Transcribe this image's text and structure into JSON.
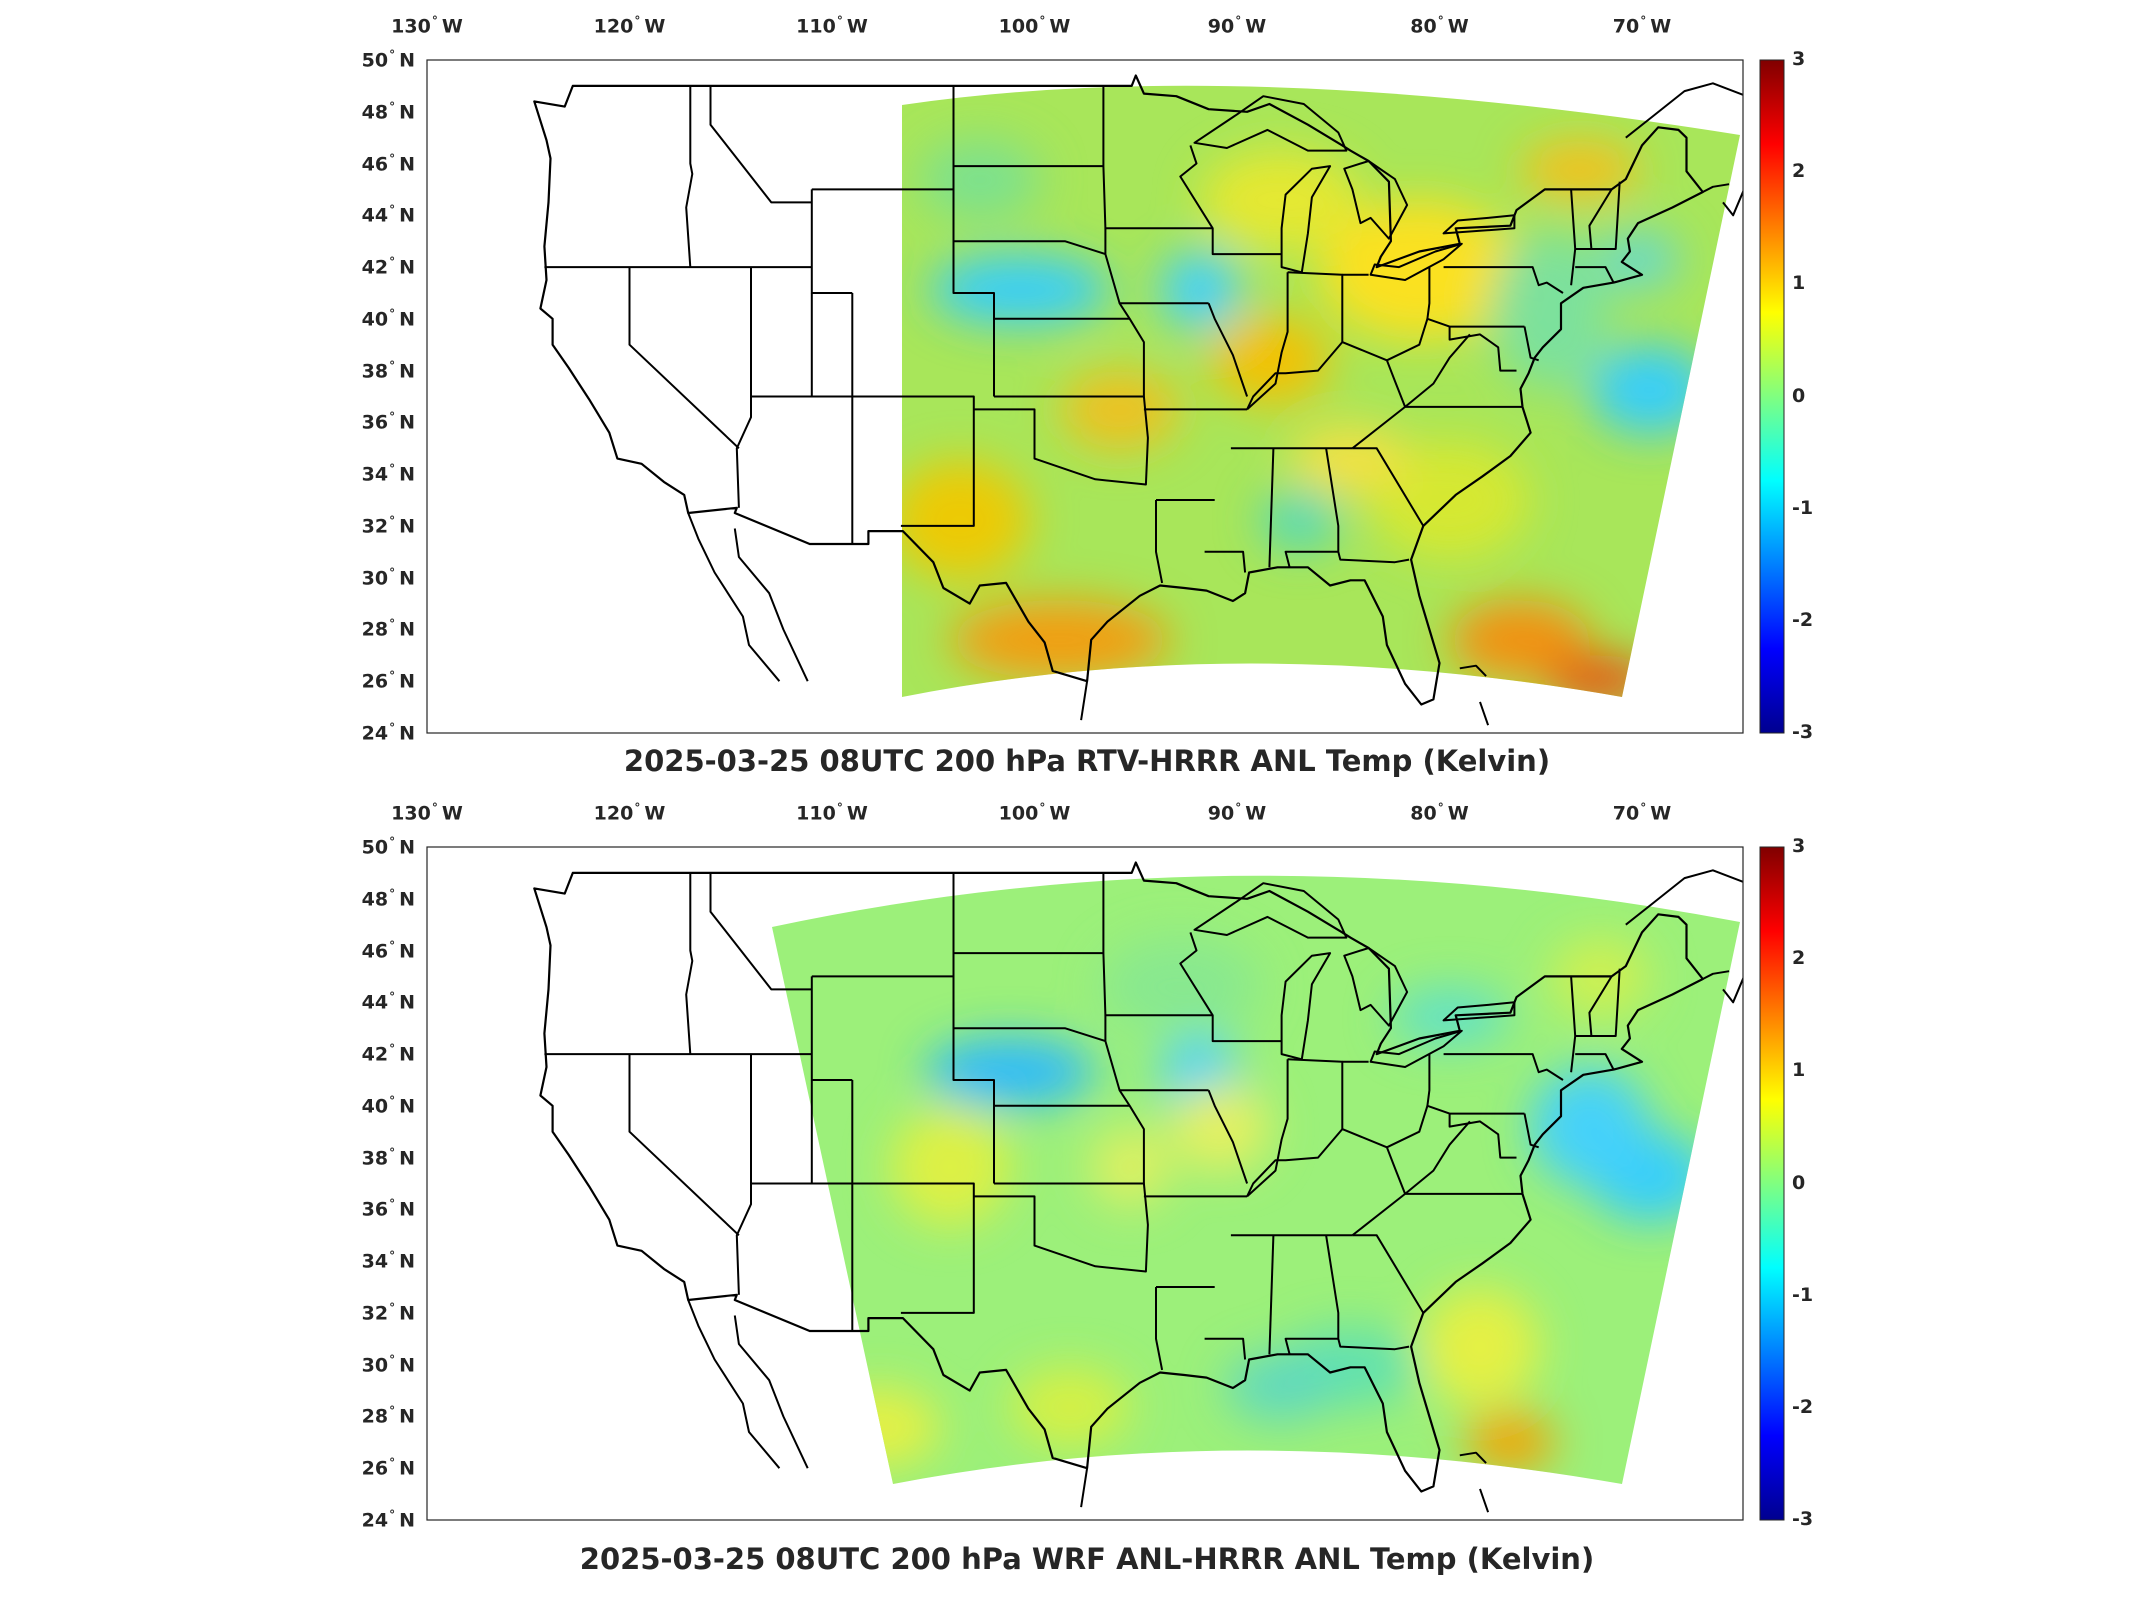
{
  "panels": [
    {
      "title": "2025-03-25 08UTC 200 hPa RTV-HRRR ANL Temp (Kelvin)",
      "variant": "rtv"
    },
    {
      "title": "2025-03-25 08UTC 200 hPa WRF ANL-HRRR ANL Temp (Kelvin)",
      "variant": "wrf"
    }
  ],
  "lon_labels": [
    {
      "deg": "130",
      "hemi": "W",
      "value": -130
    },
    {
      "deg": "120",
      "hemi": "W",
      "value": -120
    },
    {
      "deg": "110",
      "hemi": "W",
      "value": -110
    },
    {
      "deg": "100",
      "hemi": "W",
      "value": -100
    },
    {
      "deg": "90",
      "hemi": "W",
      "value": -90
    },
    {
      "deg": "80",
      "hemi": "W",
      "value": -80
    },
    {
      "deg": "70",
      "hemi": "W",
      "value": -70
    }
  ],
  "lat_labels": [
    {
      "deg": "50",
      "hemi": "N",
      "value": 50
    },
    {
      "deg": "48",
      "hemi": "N",
      "value": 48
    },
    {
      "deg": "46",
      "hemi": "N",
      "value": 46
    },
    {
      "deg": "44",
      "hemi": "N",
      "value": 44
    },
    {
      "deg": "42",
      "hemi": "N",
      "value": 42
    },
    {
      "deg": "40",
      "hemi": "N",
      "value": 40
    },
    {
      "deg": "38",
      "hemi": "N",
      "value": 38
    },
    {
      "deg": "36",
      "hemi": "N",
      "value": 36
    },
    {
      "deg": "34",
      "hemi": "N",
      "value": 34
    },
    {
      "deg": "32",
      "hemi": "N",
      "value": 32
    },
    {
      "deg": "30",
      "hemi": "N",
      "value": 30
    },
    {
      "deg": "28",
      "hemi": "N",
      "value": 28
    },
    {
      "deg": "26",
      "hemi": "N",
      "value": 26
    },
    {
      "deg": "24",
      "hemi": "N",
      "value": 24
    }
  ],
  "colorbar": {
    "min": -3,
    "max": 3,
    "ticks": [
      "3",
      "2",
      "1",
      "0",
      "-1",
      "-2",
      "-3"
    ],
    "colormap": [
      "#00008f",
      "#0000ff",
      "#0080ff",
      "#00ffff",
      "#80ff80",
      "#ffff00",
      "#ff8000",
      "#ff0000",
      "#800000"
    ]
  },
  "colors": {
    "field_base_rtv": "#a8e65a",
    "field_base_wrf": "#9cf07a",
    "boundary": "#000000",
    "frame": "#262626"
  }
}
